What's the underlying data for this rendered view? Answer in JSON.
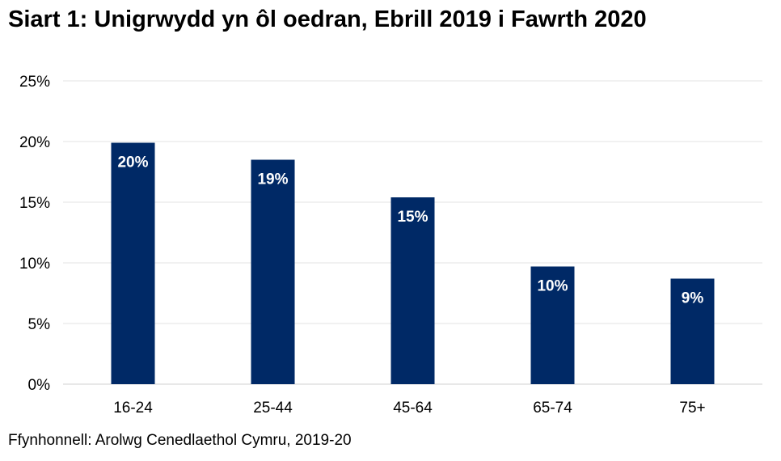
{
  "chart_data": {
    "type": "bar",
    "title": "Siart 1: Unigrwydd yn ôl oedran, Ebrill 2019 i Fawrth 2020",
    "source": "Ffynhonnell: Arolwg Cenedlaethol Cymru, 2019-20",
    "xlabel": "",
    "ylabel": "",
    "categories": [
      "16-24",
      "25-44",
      "45-64",
      "65-74",
      "75+"
    ],
    "values": [
      19.9,
      18.5,
      15.4,
      9.7,
      8.7
    ],
    "data_labels": [
      "20%",
      "19%",
      "15%",
      "10%",
      "9%"
    ],
    "ylim": [
      0,
      25
    ],
    "yticks": [
      0,
      5,
      10,
      15,
      20,
      25
    ],
    "ytick_labels": [
      "0%",
      "5%",
      "10%",
      "15%",
      "20%",
      "25%"
    ],
    "grid": true,
    "legend": "none",
    "bar_color": "#002966"
  }
}
